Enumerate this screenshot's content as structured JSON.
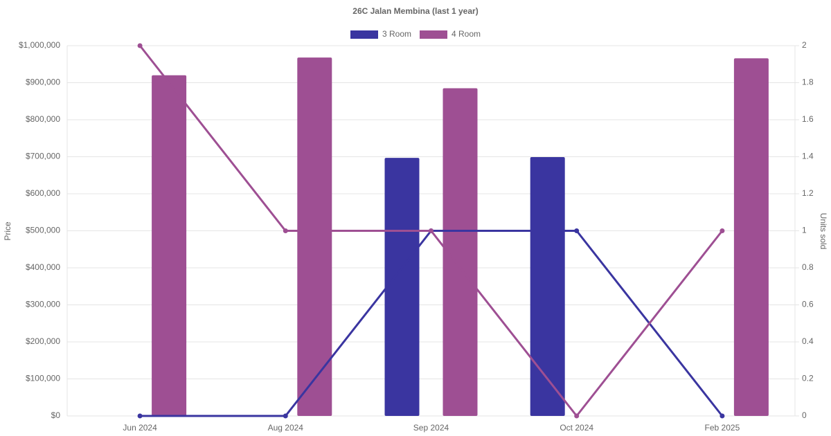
{
  "chart_data": {
    "type": "bar-line",
    "title": "26C Jalan Membina (last 1 year)",
    "y_label": "Price",
    "y2_label": "Units sold",
    "categories": [
      "Jun 2024",
      "Aug 2024",
      "Sep 2024",
      "Oct 2024",
      "Feb 2025"
    ],
    "series": [
      {
        "name": "3 Room",
        "color": "#3a35a0",
        "values": [
          null,
          null,
          697000,
          699000,
          null
        ],
        "units": [
          0,
          0,
          1,
          1,
          0
        ]
      },
      {
        "name": "4 Room",
        "color": "#9e4f93",
        "values": [
          920000,
          968000,
          885000,
          null,
          966000
        ],
        "units": [
          2,
          1,
          1,
          0,
          1
        ]
      }
    ],
    "ylim": [
      0,
      1000000
    ],
    "yticks": [
      {
        "value": 0,
        "label": "$0"
      },
      {
        "value": 100000,
        "label": "$100,000"
      },
      {
        "value": 200000,
        "label": "$200,000"
      },
      {
        "value": 300000,
        "label": "$300,000"
      },
      {
        "value": 400000,
        "label": "$400,000"
      },
      {
        "value": 500000,
        "label": "$500,000"
      },
      {
        "value": 600000,
        "label": "$600,000"
      },
      {
        "value": 700000,
        "label": "$700,000"
      },
      {
        "value": 800000,
        "label": "$800,000"
      },
      {
        "value": 900000,
        "label": "$900,000"
      },
      {
        "value": 1000000,
        "label": "$1,000,000"
      }
    ],
    "y2lim": [
      0,
      2
    ],
    "y2ticks": [
      0,
      0.2,
      0.4,
      0.6,
      0.8,
      1,
      1.2,
      1.4,
      1.6,
      1.8,
      2
    ],
    "grid": true
  }
}
